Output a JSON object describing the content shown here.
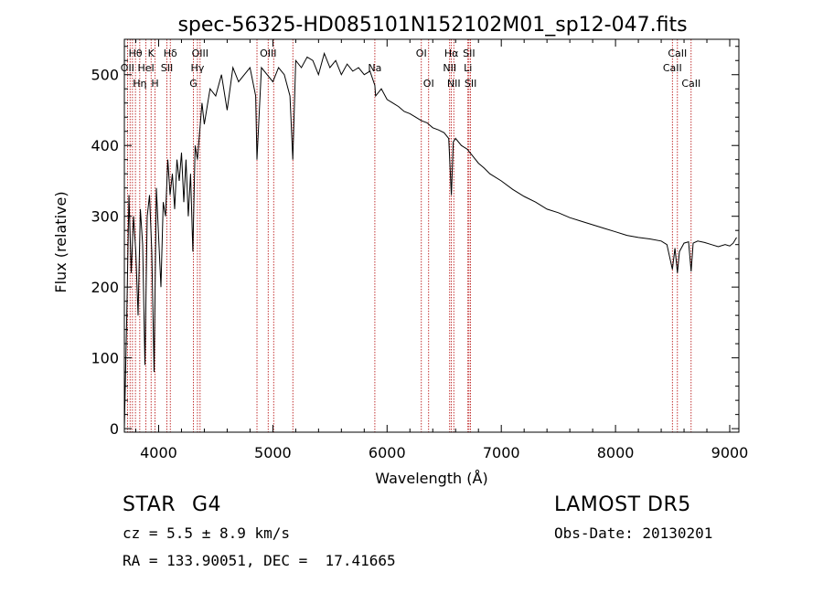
{
  "chart_data": {
    "type": "line",
    "title": "spec-56325-HD085101N152102M01_sp12-047.fits",
    "xlabel": "Wavelength (Å)",
    "ylabel": "Flux (relative)",
    "xlim": [
      3700,
      9080
    ],
    "ylim": [
      -5,
      550
    ],
    "xticks": [
      4000,
      5000,
      6000,
      7000,
      8000,
      9000
    ],
    "yticks": [
      0,
      100,
      200,
      300,
      400,
      500
    ],
    "grid": false,
    "series": [
      {
        "x": [
          3700,
          3720,
          3740,
          3760,
          3780,
          3800,
          3820,
          3840,
          3860,
          3880,
          3900,
          3920,
          3940,
          3960,
          3980,
          4000,
          4020,
          4040,
          4060,
          4080,
          4100,
          4120,
          4140,
          4160,
          4180,
          4200,
          4220,
          4240,
          4260,
          4280,
          4300,
          4320,
          4340,
          4360,
          4380,
          4400,
          4450,
          4500,
          4550,
          4600,
          4650,
          4700,
          4750,
          4800,
          4850,
          4861,
          4900,
          4950,
          5000,
          5050,
          5100,
          5150,
          5175,
          5200,
          5250,
          5300,
          5350,
          5400,
          5450,
          5500,
          5550,
          5600,
          5650,
          5700,
          5750,
          5800,
          5850,
          5893,
          5900,
          5950,
          6000,
          6050,
          6100,
          6150,
          6200,
          6250,
          6300,
          6350,
          6400,
          6450,
          6500,
          6540,
          6563,
          6580,
          6600,
          6650,
          6700,
          6750,
          6800,
          6850,
          6900,
          7000,
          7100,
          7200,
          7300,
          7400,
          7500,
          7600,
          7700,
          7800,
          7900,
          8000,
          8100,
          8200,
          8300,
          8400,
          8450,
          8498,
          8520,
          8542,
          8560,
          8600,
          8640,
          8662,
          8680,
          8720,
          8780,
          8840,
          8900,
          8960,
          9000,
          9030,
          9060
        ],
        "y": [
          0,
          150,
          330,
          220,
          300,
          250,
          160,
          310,
          260,
          90,
          300,
          330,
          250,
          80,
          340,
          270,
          200,
          320,
          300,
          380,
          330,
          360,
          310,
          380,
          350,
          390,
          320,
          380,
          300,
          360,
          250,
          400,
          380,
          420,
          460,
          430,
          480,
          470,
          500,
          450,
          510,
          490,
          500,
          510,
          470,
          380,
          510,
          500,
          490,
          510,
          500,
          470,
          380,
          520,
          510,
          525,
          520,
          500,
          530,
          510,
          520,
          500,
          515,
          505,
          510,
          500,
          505,
          485,
          470,
          480,
          465,
          460,
          455,
          448,
          445,
          440,
          435,
          432,
          425,
          422,
          418,
          410,
          330,
          405,
          410,
          400,
          395,
          385,
          375,
          368,
          360,
          350,
          338,
          328,
          320,
          310,
          305,
          298,
          293,
          288,
          283,
          278,
          273,
          270,
          268,
          265,
          260,
          225,
          255,
          220,
          250,
          262,
          264,
          222,
          262,
          265,
          263,
          260,
          257,
          260,
          258,
          262,
          270
        ]
      }
    ],
    "line_labels": [
      {
        "label": "Hθ",
        "x": 3797,
        "row": 1
      },
      {
        "label": "OII",
        "x": 3727,
        "row": 2
      },
      {
        "label": "Hη",
        "x": 3835,
        "row": 3
      },
      {
        "label": "K",
        "x": 3934,
        "row": 1
      },
      {
        "label": "HeI",
        "x": 3889,
        "row": 2
      },
      {
        "label": "H",
        "x": 3968,
        "row": 3
      },
      {
        "label": "Hδ",
        "x": 4102,
        "row": 1
      },
      {
        "label": "SII",
        "x": 4072,
        "row": 2
      },
      {
        "label": "OIII",
        "x": 4363,
        "row": 1
      },
      {
        "label": "Hγ",
        "x": 4340,
        "row": 2
      },
      {
        "label": "G",
        "x": 4305,
        "row": 3
      },
      {
        "label": "OIII",
        "x": 4959,
        "row": 1
      },
      {
        "label": "Na",
        "x": 5893,
        "row": 2
      },
      {
        "label": "OI",
        "x": 6300,
        "row": 1
      },
      {
        "label": "OI",
        "x": 6364,
        "row": 3
      },
      {
        "label": "Hα",
        "x": 6563,
        "row": 1
      },
      {
        "label": "SII",
        "x": 6717,
        "row": 1
      },
      {
        "label": "NII",
        "x": 6548,
        "row": 2
      },
      {
        "label": "Li",
        "x": 6708,
        "row": 2
      },
      {
        "label": "NII",
        "x": 6584,
        "row": 3
      },
      {
        "label": "SII",
        "x": 6731,
        "row": 3
      },
      {
        "label": "CaII",
        "x": 8542,
        "row": 1
      },
      {
        "label": "CaII",
        "x": 8498,
        "row": 2
      },
      {
        "label": "CaII",
        "x": 8662,
        "row": 3
      }
    ],
    "line_marker_x": [
      3727,
      3750,
      3771,
      3797,
      3835,
      3889,
      3934,
      3968,
      4072,
      4102,
      4305,
      4340,
      4363,
      4861,
      4959,
      5007,
      5175,
      5893,
      6300,
      6364,
      6548,
      6563,
      6584,
      6708,
      6717,
      6731,
      8498,
      8542,
      8662
    ],
    "colors": {
      "spectrum": "#000000",
      "line_markers": "#b30000"
    }
  },
  "info": {
    "object_class": "STAR",
    "subclass": "G4",
    "survey": "LAMOST DR5",
    "redshift": "cz = 5.5 ± 8.9 km/s",
    "obs_date": "Obs-Date: 20130201",
    "coords": "RA = 133.90051, DEC =  17.41665"
  }
}
